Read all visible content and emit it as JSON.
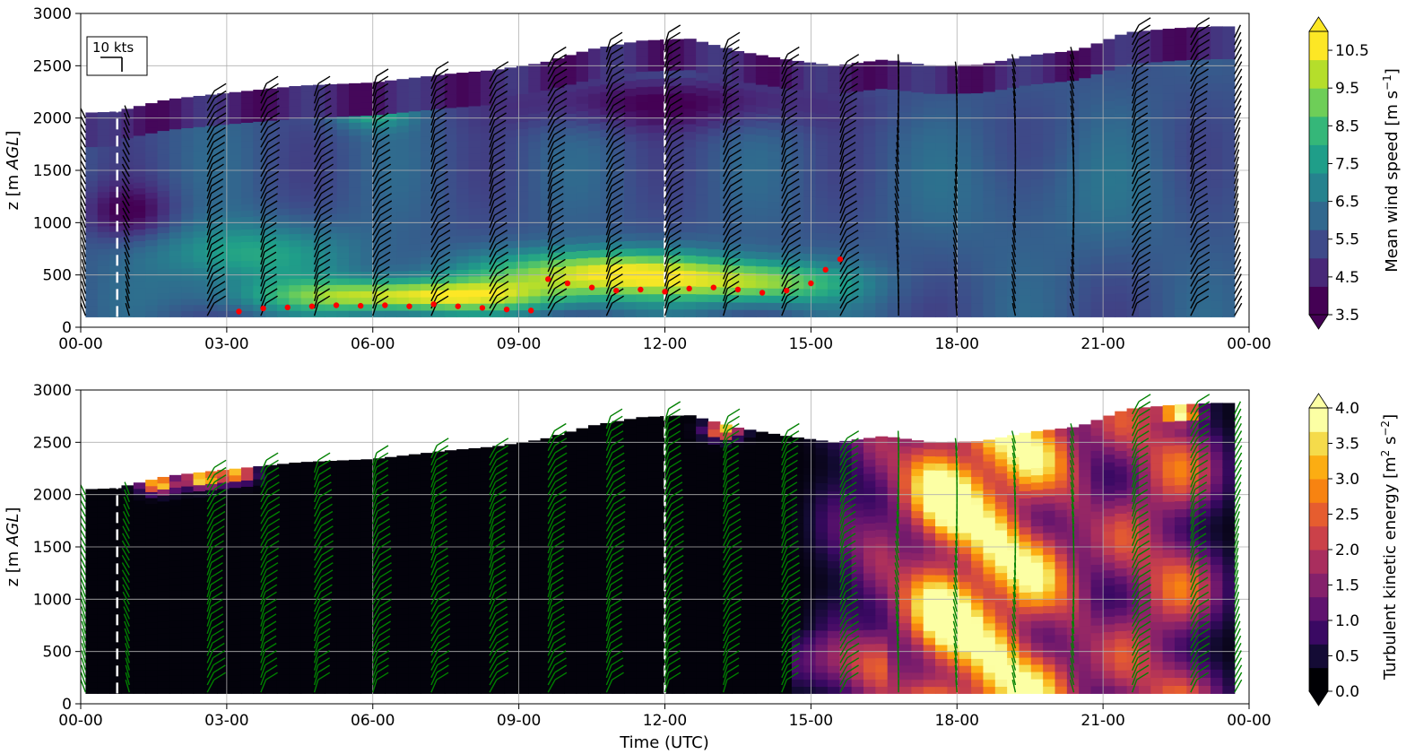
{
  "chart_data": [
    {
      "type": "heatmap",
      "panel": "top",
      "ylabel": "z [m AGL]",
      "ylabel_parts": {
        "main": "z [m ",
        "italic": "AGL",
        "end": "]"
      },
      "xlim": [
        0,
        24
      ],
      "ylim": [
        0,
        3000
      ],
      "xticks": [
        0,
        3,
        6,
        9,
        12,
        15,
        18,
        21,
        24
      ],
      "xtick_labels": [
        "00-00",
        "03-00",
        "06-00",
        "09-00",
        "12-00",
        "15-00",
        "18-00",
        "21-00",
        "00-00"
      ],
      "yticks": [
        0,
        500,
        1000,
        1500,
        2000,
        2500,
        3000
      ],
      "ytick_labels": [
        "0",
        "500",
        "1000",
        "1500",
        "2000",
        "2500",
        "3000"
      ],
      "grid": true,
      "dashed_vlines_hours": [
        0.75,
        12.0
      ],
      "barb_key_label": "10 kts",
      "colorbar": {
        "label_main": "Mean wind speed [m s",
        "label_sup": "−1",
        "label_end": "]",
        "range": [
          3.5,
          11.0
        ],
        "extend": "both",
        "ticks": [
          3.5,
          4.5,
          5.5,
          6.5,
          7.5,
          8.5,
          9.5,
          10.5
        ],
        "tick_labels": [
          "3.5",
          "4.5",
          "5.5",
          "6.5",
          "7.5",
          "8.5",
          "9.5",
          "10.5"
        ],
        "colors": [
          "#440154",
          "#482878",
          "#3e4a89",
          "#31688e",
          "#26828e",
          "#1f9e89",
          "#35b779",
          "#6ece58",
          "#b5de2b",
          "#fde725"
        ]
      },
      "data_top_m": [
        [
          0.0,
          2050
        ],
        [
          0.7,
          2060
        ],
        [
          1.8,
          2180
        ],
        [
          3.0,
          2240
        ],
        [
          4.5,
          2310
        ],
        [
          6.0,
          2340
        ],
        [
          7.5,
          2420
        ],
        [
          8.5,
          2460
        ],
        [
          9.5,
          2530
        ],
        [
          10.5,
          2660
        ],
        [
          11.5,
          2740
        ],
        [
          12.5,
          2760
        ],
        [
          13.5,
          2640
        ],
        [
          14.5,
          2560
        ],
        [
          15.5,
          2500
        ],
        [
          16.5,
          2560
        ],
        [
          17.5,
          2500
        ],
        [
          18.5,
          2510
        ],
        [
          19.5,
          2600
        ],
        [
          20.5,
          2650
        ],
        [
          21.5,
          2820
        ],
        [
          22.5,
          2860
        ],
        [
          23.5,
          2880
        ],
        [
          23.7,
          2870
        ]
      ],
      "wind_speed_blobs": [
        {
          "t": 6.8,
          "z": 300,
          "speed": 11.0,
          "st": 3.0,
          "sz": 160
        },
        {
          "t": 10.8,
          "z": 520,
          "speed": 11.0,
          "st": 2.5,
          "sz": 220
        },
        {
          "t": 14.0,
          "z": 420,
          "speed": 9.5,
          "st": 1.8,
          "sz": 200
        },
        {
          "t": 3.5,
          "z": 700,
          "speed": 8.0,
          "st": 2.0,
          "sz": 300
        },
        {
          "t": 1.0,
          "z": 1100,
          "speed": 3.6,
          "st": 0.9,
          "sz": 250
        },
        {
          "t": 12.0,
          "z": 2150,
          "speed": 3.6,
          "st": 3.5,
          "sz": 250
        },
        {
          "t": 6.0,
          "z": 2100,
          "speed": 8.5,
          "st": 0.8,
          "sz": 180
        },
        {
          "t": 20.0,
          "z": 1200,
          "speed": 6.0,
          "st": 3.0,
          "sz": 600
        }
      ],
      "pbl_height_points": [
        [
          3.25,
          150
        ],
        [
          3.75,
          180
        ],
        [
          4.25,
          190
        ],
        [
          4.75,
          200
        ],
        [
          5.25,
          210
        ],
        [
          5.75,
          205
        ],
        [
          6.25,
          210
        ],
        [
          6.75,
          200
        ],
        [
          7.25,
          220
        ],
        [
          7.75,
          200
        ],
        [
          8.25,
          185
        ],
        [
          8.75,
          170
        ],
        [
          9.25,
          160
        ],
        [
          9.6,
          460
        ],
        [
          10.0,
          420
        ],
        [
          10.5,
          380
        ],
        [
          11.0,
          350
        ],
        [
          11.5,
          360
        ],
        [
          12.0,
          340
        ],
        [
          12.5,
          370
        ],
        [
          13.0,
          380
        ],
        [
          13.5,
          360
        ],
        [
          14.0,
          330
        ],
        [
          14.5,
          350
        ],
        [
          15.0,
          420
        ],
        [
          15.3,
          550
        ],
        [
          15.6,
          650
        ]
      ],
      "barb_times": [
        0.1,
        1.0,
        2.6,
        3.7,
        4.8,
        6.0,
        7.2,
        8.4,
        9.6,
        10.8,
        12.0,
        13.2,
        14.4,
        15.6,
        16.8,
        18.0,
        19.2,
        20.4,
        21.6,
        22.8,
        23.7
      ],
      "barb_color": "#000000",
      "pbl_color": "#ff0000"
    },
    {
      "type": "heatmap",
      "panel": "bottom",
      "xlabel": "Time (UTC)",
      "ylabel": "z [m AGL]",
      "ylabel_parts": {
        "main": "z [m ",
        "italic": "AGL",
        "end": "]"
      },
      "xlim": [
        0,
        24
      ],
      "ylim": [
        0,
        3000
      ],
      "xticks": [
        0,
        3,
        6,
        9,
        12,
        15,
        18,
        21,
        24
      ],
      "xtick_labels": [
        "00-00",
        "03-00",
        "06-00",
        "09-00",
        "12-00",
        "15-00",
        "18-00",
        "21-00",
        "00-00"
      ],
      "yticks": [
        0,
        500,
        1000,
        1500,
        2000,
        2500,
        3000
      ],
      "ytick_labels": [
        "0",
        "500",
        "1000",
        "1500",
        "2000",
        "2500",
        "3000"
      ],
      "grid": true,
      "dashed_vlines_hours": [
        0.75,
        12.0
      ],
      "colorbar": {
        "label_main": "Turbulent kinetic energy [m",
        "label_sup": "2",
        "label_mid": " s",
        "label_sup2": "−2",
        "label_end": "]",
        "range": [
          0.0,
          4.0
        ],
        "extend": "both",
        "ticks": [
          0.0,
          0.5,
          1.0,
          1.5,
          2.0,
          2.5,
          3.0,
          3.5,
          4.0
        ],
        "tick_labels": [
          "0.0",
          "0.5",
          "1.0",
          "1.5",
          "2.0",
          "2.5",
          "3.0",
          "3.5",
          "4.0"
        ],
        "colors": [
          "#000004",
          "#140b35",
          "#3a0963",
          "#60136e",
          "#85216b",
          "#a92e5e",
          "#cb4149",
          "#e65d2f",
          "#f78311",
          "#fcad12",
          "#f5db4b",
          "#fcffa4"
        ]
      },
      "data_top_m": [
        [
          0.0,
          2050
        ],
        [
          0.7,
          2060
        ],
        [
          1.8,
          2180
        ],
        [
          3.0,
          2240
        ],
        [
          4.5,
          2310
        ],
        [
          6.0,
          2340
        ],
        [
          7.5,
          2420
        ],
        [
          8.5,
          2460
        ],
        [
          9.5,
          2530
        ],
        [
          10.5,
          2660
        ],
        [
          11.5,
          2740
        ],
        [
          12.5,
          2760
        ],
        [
          13.5,
          2640
        ],
        [
          14.5,
          2560
        ],
        [
          15.5,
          2500
        ],
        [
          16.5,
          2560
        ],
        [
          17.5,
          2500
        ],
        [
          18.5,
          2510
        ],
        [
          19.5,
          2600
        ],
        [
          20.5,
          2650
        ],
        [
          21.5,
          2820
        ],
        [
          22.5,
          2860
        ],
        [
          23.5,
          2880
        ],
        [
          23.7,
          2870
        ]
      ],
      "tke_columns": [
        {
          "t": 16.4,
          "width": 0.6,
          "tke": 1.6
        },
        {
          "t": 17.4,
          "width": 0.7,
          "tke": 3.0
        },
        {
          "t": 18.0,
          "width": 0.7,
          "tke": 4.0
        },
        {
          "t": 18.8,
          "width": 0.6,
          "tke": 3.2
        },
        {
          "t": 19.6,
          "width": 0.7,
          "tke": 4.0
        },
        {
          "t": 20.4,
          "width": 0.5,
          "tke": 1.2
        },
        {
          "t": 21.4,
          "width": 0.8,
          "tke": 2.4
        },
        {
          "t": 22.6,
          "width": 0.8,
          "tke": 2.8
        },
        {
          "t": 15.6,
          "width": 0.6,
          "tke": 0.9
        }
      ],
      "tke_patches": [
        {
          "t": 2.5,
          "z": 2150,
          "tke": 4.0
        },
        {
          "t": 3.2,
          "z": 2200,
          "tke": 3.5
        },
        {
          "t": 1.6,
          "z": 2100,
          "tke": 3.8
        },
        {
          "t": 22.6,
          "z": 2780,
          "tke": 4.0
        },
        {
          "t": 13.2,
          "z": 2620,
          "tke": 3.6
        },
        {
          "t": 19.0,
          "z": 2690,
          "tke": 3.0
        }
      ],
      "barb_times": [
        0.1,
        1.0,
        2.6,
        3.7,
        4.8,
        6.0,
        7.2,
        8.4,
        9.6,
        10.8,
        12.0,
        13.2,
        14.4,
        15.6,
        16.8,
        18.0,
        19.2,
        20.4,
        21.6,
        22.8,
        23.7
      ],
      "barb_color": "#008000"
    }
  ]
}
